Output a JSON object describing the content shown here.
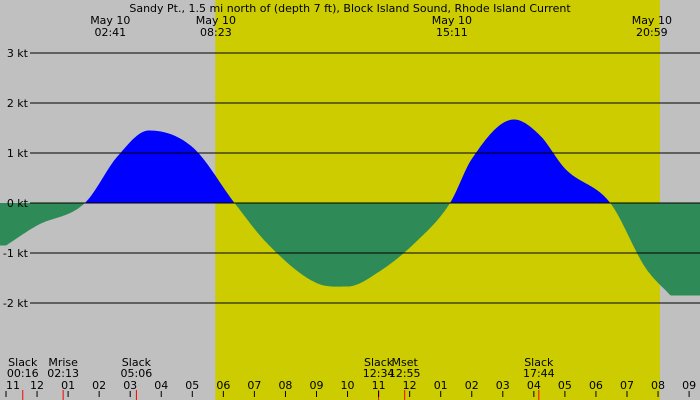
{
  "chart_data": {
    "type": "area",
    "title": "Sandy Pt., 1.5 mi north of (depth 7 ft), Block Island Sound, Rhode Island Current",
    "xlabel": "",
    "ylabel": "",
    "x_unit": "hours",
    "xlim": [
      23.0,
      33.7
    ],
    "ylim": [
      -3,
      3
    ],
    "y_ticks": [
      {
        "value": 3,
        "label": "3 kt"
      },
      {
        "value": 2,
        "label": "2 kt"
      },
      {
        "value": 1,
        "label": "1 kt"
      },
      {
        "value": 0,
        "label": "0 kt"
      },
      {
        "value": -1,
        "label": "-1 kt"
      },
      {
        "value": -2,
        "label": "-2 kt"
      }
    ],
    "grid": true,
    "series": [
      {
        "x": [
          23.0,
          23.5,
          24.27,
          24.8,
          25.3,
          26.0,
          26.68,
          27.2,
          28.0,
          28.5,
          29.0,
          29.6,
          30.15,
          30.5,
          31.18,
          31.6,
          32.0,
          32.73,
          33.3,
          33.7
        ],
        "y": [
          -0.85,
          -0.45,
          0.0,
          0.94,
          1.45,
          1.12,
          0.0,
          -0.8,
          -1.6,
          -1.67,
          -1.38,
          -0.78,
          0.0,
          0.88,
          1.67,
          1.35,
          0.69,
          0.0,
          -1.3,
          -1.85
        ]
      }
    ],
    "top_events": [
      {
        "x": 24.68,
        "date": "May 10",
        "time": "02:41"
      },
      {
        "x": 26.38,
        "date": "May 10",
        "time": "08:23"
      },
      {
        "x": 30.18,
        "date": "May 10",
        "time": "15:11"
      },
      {
        "x": 33.4,
        "date": "May 10",
        "time": "20:59"
      }
    ],
    "bottom_events": [
      {
        "x": 23.27,
        "label": "Slack",
        "time": "00:16"
      },
      {
        "x": 23.92,
        "label": "Mrise",
        "time": "02:13"
      },
      {
        "x": 25.1,
        "label": "Slack",
        "time": "05:06"
      },
      {
        "x": 29.0,
        "label": "Slack",
        "time": "12:34"
      },
      {
        "x": 29.42,
        "label": "Mset",
        "time": "12:55"
      },
      {
        "x": 31.58,
        "label": "Slack",
        "time": "17:44"
      }
    ],
    "x_ticks": [
      {
        "x": 23.0,
        "label": "11"
      },
      {
        "x": 23.5,
        "label": "12"
      },
      {
        "x": 24.0,
        "label": "01"
      },
      {
        "x": 24.5,
        "label": "02"
      },
      {
        "x": 25.0,
        "label": "03"
      },
      {
        "x": 25.5,
        "label": "04"
      },
      {
        "x": 26.0,
        "label": "05"
      },
      {
        "x": 26.5,
        "label": "06"
      },
      {
        "x": 27.0,
        "label": "07"
      },
      {
        "x": 27.5,
        "label": "08"
      },
      {
        "x": 28.0,
        "label": "09"
      },
      {
        "x": 28.5,
        "label": "10"
      },
      {
        "x": 29.0,
        "label": "11"
      },
      {
        "x": 29.5,
        "label": "12"
      },
      {
        "x": 30.0,
        "label": "01"
      },
      {
        "x": 30.5,
        "label": "02"
      },
      {
        "x": 31.0,
        "label": "03"
      },
      {
        "x": 31.5,
        "label": "04"
      },
      {
        "x": 32.0,
        "label": "05"
      },
      {
        "x": 32.5,
        "label": "06"
      },
      {
        "x": 33.0,
        "label": "07"
      },
      {
        "x": 33.5,
        "label": "08"
      },
      {
        "x": 34.0,
        "label": "09"
      }
    ],
    "daylight": [
      26.37,
      33.53
    ],
    "colors": {
      "background": "#c0c0c0",
      "daylight": "#cccc00",
      "flood": "#0000ff",
      "ebb": "#2e8b57",
      "gridline": "#000000",
      "event_marker": "#ff0000"
    }
  }
}
